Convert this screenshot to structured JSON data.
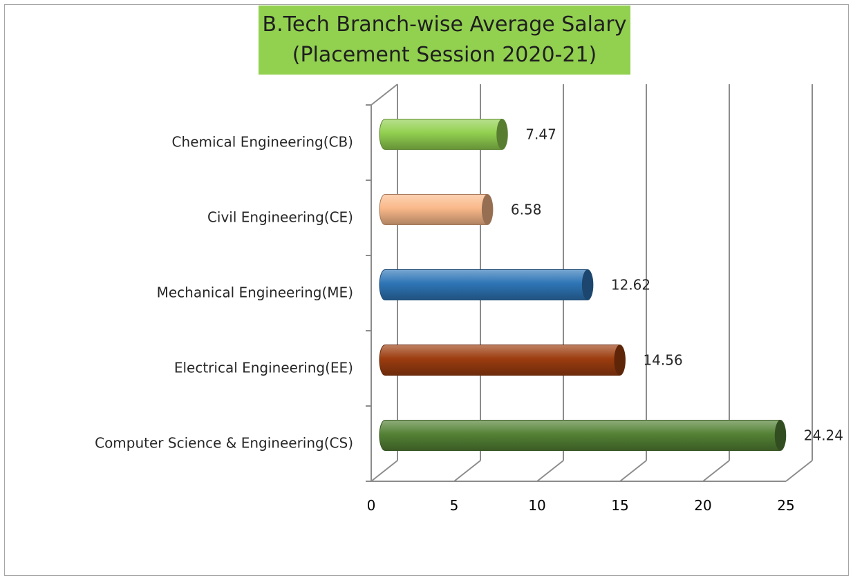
{
  "chart_data": {
    "type": "bar",
    "orientation": "horizontal",
    "style": "3d-cylinder",
    "title": "B.Tech Branch-wise Average Salary",
    "subtitle": "(Placement Session 2020-21)",
    "categories": [
      "Chemical Engineering(CB)",
      "Civil Engineering(CE)",
      "Mechanical Engineering(ME)",
      "Electrical Engineering(EE)",
      "Computer Science & Engineering(CS)"
    ],
    "values": [
      7.47,
      6.58,
      12.62,
      14.56,
      24.24
    ],
    "data_labels": [
      "7.47",
      "6.58",
      "12.62",
      "14.56",
      "24.24"
    ],
    "colors": [
      "#92d050",
      "#fab98a",
      "#2e75b6",
      "#9c3d0f",
      "#548235"
    ],
    "xlim": [
      0,
      25
    ],
    "xticks": [
      "0",
      "5",
      "10",
      "15",
      "20",
      "25"
    ],
    "xlabel": "",
    "ylabel": "",
    "grid": true,
    "legend": "none",
    "title_background": "#92d050"
  }
}
